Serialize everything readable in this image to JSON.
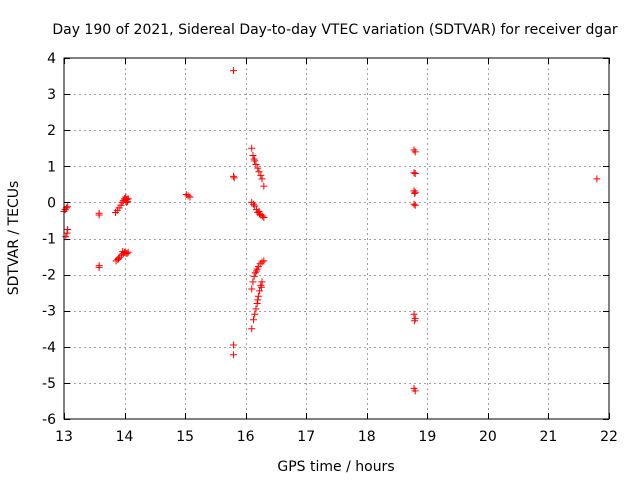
{
  "chart_data": {
    "type": "scatter",
    "title": "Day 190 of 2021, Sidereal Day-to-day VTEC variation (SDTVAR) for receiver dgar",
    "xlabel": "GPS time / hours",
    "ylabel": "SDTVAR / TECUs",
    "xlim": [
      13,
      22
    ],
    "ylim": [
      -6,
      4
    ],
    "xticks": [
      13,
      14,
      15,
      16,
      17,
      18,
      19,
      20,
      21,
      22
    ],
    "yticks": [
      -6,
      -5,
      -4,
      -3,
      -2,
      -1,
      0,
      1,
      2,
      3,
      4
    ],
    "grid": true,
    "marker": "+",
    "colors": {
      "marker": "#ff0000",
      "grid": "#a0a0a0",
      "axis": "#000000"
    },
    "series": [
      {
        "name": "SDTVAR",
        "points": [
          [
            13.0,
            -0.25
          ],
          [
            13.02,
            -0.2
          ],
          [
            13.04,
            -0.15
          ],
          [
            13.06,
            -0.12
          ],
          [
            13.03,
            -0.95
          ],
          [
            13.05,
            -0.85
          ],
          [
            13.06,
            -0.75
          ],
          [
            13.58,
            -0.3
          ],
          [
            13.58,
            -0.35
          ],
          [
            13.58,
            -1.75
          ],
          [
            13.58,
            -1.8
          ],
          [
            13.85,
            -0.28
          ],
          [
            13.88,
            -0.22
          ],
          [
            13.91,
            -0.15
          ],
          [
            13.94,
            -0.08
          ],
          [
            13.96,
            0.0
          ],
          [
            13.98,
            0.05
          ],
          [
            14.0,
            0.1
          ],
          [
            14.02,
            0.15
          ],
          [
            14.04,
            0.08
          ],
          [
            14.05,
            0.02
          ],
          [
            14.06,
            0.1
          ],
          [
            14.03,
            0.0
          ],
          [
            13.86,
            -1.62
          ],
          [
            13.89,
            -1.58
          ],
          [
            13.92,
            -1.52
          ],
          [
            13.95,
            -1.46
          ],
          [
            13.98,
            -1.42
          ],
          [
            14.0,
            -1.38
          ],
          [
            14.02,
            -1.4
          ],
          [
            14.04,
            -1.42
          ],
          [
            14.06,
            -1.38
          ],
          [
            13.9,
            -1.55
          ],
          [
            13.97,
            -1.36
          ],
          [
            15.02,
            0.22
          ],
          [
            15.05,
            0.18
          ],
          [
            15.08,
            0.15
          ],
          [
            15.8,
            3.65
          ],
          [
            15.8,
            0.72
          ],
          [
            15.81,
            0.68
          ],
          [
            15.8,
            -3.95
          ],
          [
            15.8,
            -4.22
          ],
          [
            16.1,
            1.5
          ],
          [
            16.12,
            1.3
          ],
          [
            16.14,
            1.2
          ],
          [
            16.15,
            1.15
          ],
          [
            16.17,
            1.05
          ],
          [
            16.2,
            0.95
          ],
          [
            16.22,
            0.85
          ],
          [
            16.25,
            0.75
          ],
          [
            16.27,
            0.65
          ],
          [
            16.3,
            0.45
          ],
          [
            16.1,
            0.0
          ],
          [
            16.13,
            -0.05
          ],
          [
            16.15,
            -0.1
          ],
          [
            16.18,
            -0.2
          ],
          [
            16.2,
            -0.28
          ],
          [
            16.23,
            -0.32
          ],
          [
            16.25,
            -0.35
          ],
          [
            16.28,
            -0.38
          ],
          [
            16.3,
            -0.42
          ],
          [
            16.22,
            -0.25
          ],
          [
            16.1,
            -2.4
          ],
          [
            16.12,
            -2.2
          ],
          [
            16.14,
            -2.05
          ],
          [
            16.16,
            -1.95
          ],
          [
            16.19,
            -1.85
          ],
          [
            16.21,
            -1.78
          ],
          [
            16.24,
            -1.7
          ],
          [
            16.27,
            -1.65
          ],
          [
            16.3,
            -1.62
          ],
          [
            16.18,
            -1.9
          ],
          [
            16.1,
            -3.5
          ],
          [
            16.13,
            -3.25
          ],
          [
            16.15,
            -3.1
          ],
          [
            16.17,
            -2.95
          ],
          [
            16.19,
            -2.8
          ],
          [
            16.21,
            -2.6
          ],
          [
            16.23,
            -2.45
          ],
          [
            16.25,
            -2.3
          ],
          [
            16.27,
            -2.2
          ],
          [
            16.2,
            -2.7
          ],
          [
            16.26,
            -2.35
          ],
          [
            18.78,
            1.45
          ],
          [
            18.8,
            1.4
          ],
          [
            18.78,
            0.82
          ],
          [
            18.8,
            0.8
          ],
          [
            18.78,
            0.32
          ],
          [
            18.8,
            0.28
          ],
          [
            18.79,
            0.25
          ],
          [
            18.78,
            -0.05
          ],
          [
            18.8,
            -0.08
          ],
          [
            18.78,
            -3.1
          ],
          [
            18.8,
            -3.22
          ],
          [
            18.79,
            -3.28
          ],
          [
            18.78,
            -5.15
          ],
          [
            18.8,
            -5.22
          ],
          [
            21.8,
            0.65
          ]
        ]
      }
    ]
  }
}
